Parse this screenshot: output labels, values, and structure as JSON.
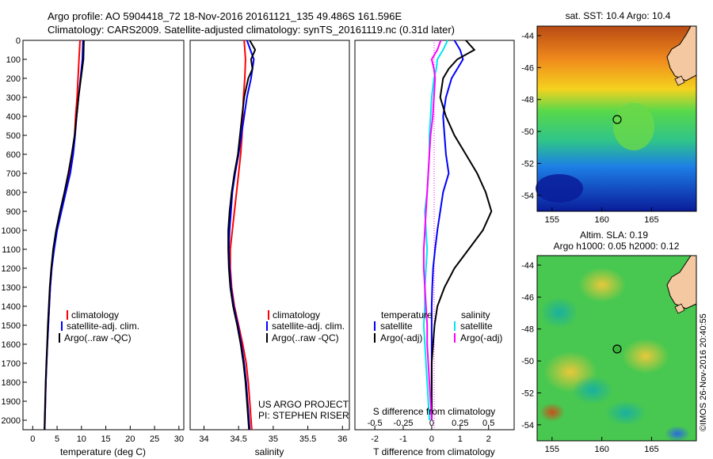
{
  "header": {
    "line1": "Argo profile: AO 5904418_72 18-Nov-2016 20161121_135 49.486S 161.596E",
    "line2": "Climatology: CARS2009. Satellite-adjusted climatology: synTS_20161119.nc (0.31d later)"
  },
  "colors": {
    "climatology": "#ff0000",
    "satellite": "#0000ff",
    "argo": "#000000",
    "sal_satellite": "#00e5ee",
    "sal_argo": "#ff00ff"
  },
  "chart_data": [
    {
      "type": "line",
      "name": "temperature-panel",
      "xlabel": "temperature (deg C)",
      "ylabel": "",
      "xlim": [
        -2,
        31
      ],
      "ylim": [
        2050,
        0
      ],
      "xticks": [
        "0",
        "5",
        "10",
        "15",
        "20",
        "25",
        "30"
      ],
      "yticks": [
        "0",
        "100",
        "200",
        "300",
        "400",
        "500",
        "600",
        "700",
        "800",
        "900",
        "1000",
        "1100",
        "1200",
        "1300",
        "1400",
        "1500",
        "1600",
        "1700",
        "1800",
        "1900",
        "2000"
      ],
      "legend": [
        "climatology",
        "satellite-adj. clim.",
        "Argo(..raw -QC)"
      ],
      "series": [
        {
          "name": "climatology",
          "depth": [
            0,
            100,
            200,
            300,
            400,
            500,
            600,
            700,
            800,
            900,
            1000,
            1100,
            1200,
            1300,
            1400,
            1500,
            1600,
            1700,
            1800,
            1900,
            2000,
            2050
          ],
          "values": [
            9.7,
            9.5,
            9.3,
            9.1,
            8.8,
            8.6,
            8.2,
            7.5,
            6.6,
            5.7,
            4.9,
            4.3,
            3.9,
            3.6,
            3.4,
            3.2,
            3.0,
            2.85,
            2.7,
            2.6,
            2.5,
            2.45
          ]
        },
        {
          "name": "satellite-adj. clim.",
          "depth": [
            0,
            100,
            200,
            300,
            400,
            500,
            600,
            700,
            800,
            900,
            1000,
            1100,
            1200,
            1300,
            1400,
            1500,
            1600,
            1700,
            1800,
            1900,
            2000,
            2050
          ],
          "values": [
            10.3,
            10.2,
            9.8,
            9.4,
            9.0,
            8.7,
            8.3,
            7.7,
            6.8,
            5.9,
            5.0,
            4.4,
            3.9,
            3.6,
            3.4,
            3.2,
            3.0,
            2.85,
            2.7,
            2.6,
            2.5,
            2.45
          ]
        },
        {
          "name": "Argo(..raw -QC)",
          "depth": [
            0,
            100,
            200,
            300,
            400,
            500,
            600,
            700,
            800,
            900,
            1000,
            1100,
            1200,
            1300,
            1400,
            1500,
            1600,
            1700,
            1800,
            1900,
            2000,
            2050
          ],
          "values": [
            10.5,
            10.4,
            9.9,
            9.4,
            9.0,
            8.6,
            8.0,
            7.3,
            6.5,
            5.6,
            4.8,
            4.2,
            3.8,
            3.5,
            3.3,
            3.1,
            2.95,
            2.8,
            2.65,
            2.55,
            2.45,
            2.4
          ]
        }
      ]
    },
    {
      "type": "line",
      "name": "salinity-panel",
      "xlabel": "salinity",
      "ylabel": "",
      "xlim": [
        33.8,
        36.1
      ],
      "ylim": [
        2050,
        0
      ],
      "xticks": [
        "34",
        "34.5",
        "35",
        "35.5",
        "36"
      ],
      "legend": [
        "climatology",
        "satellite-adj. clim.",
        "Argo(..raw -QC)"
      ],
      "series": [
        {
          "name": "climatology",
          "depth": [
            0,
            100,
            200,
            300,
            400,
            500,
            600,
            700,
            800,
            900,
            1000,
            1100,
            1200,
            1300,
            1400,
            1500,
            1600,
            1700,
            1800,
            1900,
            2000,
            2050
          ],
          "values": [
            34.58,
            34.6,
            34.59,
            34.57,
            34.56,
            34.55,
            34.53,
            34.5,
            34.47,
            34.44,
            34.41,
            34.38,
            34.38,
            34.4,
            34.44,
            34.5,
            34.56,
            34.61,
            34.64,
            34.66,
            34.68,
            34.69
          ]
        },
        {
          "name": "satellite-adj. clim.",
          "depth": [
            0,
            100,
            200,
            300,
            400,
            500,
            600,
            700,
            800,
            900,
            1000,
            1100,
            1200,
            1300,
            1400,
            1500,
            1600,
            1700,
            1800,
            1900,
            2000,
            2050
          ],
          "values": [
            34.62,
            34.72,
            34.68,
            34.62,
            34.58,
            34.54,
            34.5,
            34.45,
            34.41,
            34.39,
            34.37,
            34.36,
            34.37,
            34.39,
            34.43,
            34.49,
            34.54,
            34.58,
            34.61,
            34.63,
            34.65,
            34.66
          ]
        },
        {
          "name": "Argo(..raw -QC)",
          "depth": [
            0,
            50,
            100,
            150,
            200,
            300,
            400,
            500,
            600,
            700,
            800,
            900,
            1000,
            1100,
            1200,
            1300,
            1400,
            1500,
            1600,
            1700,
            1800,
            1900,
            2000,
            2050
          ],
          "values": [
            34.66,
            34.74,
            34.68,
            34.7,
            34.64,
            34.58,
            34.55,
            34.52,
            34.49,
            34.44,
            34.4,
            34.37,
            34.35,
            34.35,
            34.36,
            34.38,
            34.42,
            34.48,
            34.53,
            34.57,
            34.6,
            34.62,
            34.64,
            34.65
          ]
        }
      ]
    },
    {
      "type": "line",
      "name": "difference-panel",
      "xlabel": "T difference from climatology",
      "xlabel_top": "S difference from climatology",
      "ylim": [
        2050,
        0
      ],
      "xlim": [
        -2.7,
        2.9
      ],
      "xticks": [
        "-2",
        "-1",
        "0",
        "1",
        "2"
      ],
      "xticks_top": [
        "-0.5",
        "-0.25",
        "0",
        "0.25",
        "0.5"
      ],
      "legend_titles": [
        "temperature",
        "salinity"
      ],
      "legend": [
        "satellite",
        "Argo(-adj)",
        "satellite",
        "Argo(-adj)"
      ],
      "series": [
        {
          "name": "temperature satellite",
          "depth": [
            0,
            50,
            100,
            150,
            200,
            300,
            400,
            500,
            600,
            700,
            800,
            900,
            1000,
            1100,
            1200,
            1300,
            1400,
            1500,
            1600,
            1700,
            1800,
            1900,
            2000
          ],
          "values": [
            0.8,
            1.0,
            1.1,
            0.9,
            0.7,
            0.5,
            0.4,
            0.45,
            0.5,
            0.6,
            0.4,
            0.3,
            0.2,
            0.12,
            0.05,
            0.02,
            0.0,
            0.0,
            0.0,
            0.0,
            0.0,
            0.0,
            0.0
          ]
        },
        {
          "name": "temperature Argo(-adj)",
          "depth": [
            0,
            50,
            100,
            150,
            200,
            300,
            400,
            500,
            600,
            700,
            800,
            900,
            1000,
            1100,
            1200,
            1300,
            1400,
            1500,
            1600,
            1700,
            1800,
            1900,
            2000
          ],
          "values": [
            1.2,
            1.5,
            0.9,
            0.6,
            0.4,
            0.3,
            0.5,
            0.8,
            1.2,
            1.6,
            1.9,
            2.1,
            1.8,
            1.3,
            0.8,
            0.45,
            0.2,
            0.1,
            0.05,
            0.0,
            0.0,
            0.0,
            0.0
          ]
        },
        {
          "name": "salinity satellite",
          "depth": [
            0,
            50,
            100,
            150,
            200,
            300,
            400,
            500,
            600,
            700,
            800,
            900,
            1000,
            1100,
            1200,
            1300,
            1400,
            1500,
            1600,
            1700,
            1800,
            1900,
            2000
          ],
          "values": [
            0.14,
            0.1,
            0.05,
            0.04,
            0.02,
            0.0,
            -0.01,
            -0.02,
            -0.02,
            -0.03,
            -0.04,
            -0.06,
            -0.05,
            -0.04,
            -0.05,
            -0.06,
            -0.06,
            -0.07,
            -0.06,
            -0.05,
            -0.04,
            -0.03,
            -0.02
          ]
        },
        {
          "name": "salinity Argo(-adj)",
          "depth": [
            0,
            50,
            100,
            150,
            200,
            300,
            400,
            500,
            600,
            700,
            800,
            900,
            1000,
            1100,
            1200,
            1300,
            1400,
            1500,
            1600,
            1700,
            1800,
            1900,
            2000
          ],
          "values": [
            0.08,
            0.05,
            0.0,
            0.02,
            0.03,
            0.02,
            0.01,
            -0.01,
            -0.02,
            -0.03,
            -0.04,
            -0.05,
            -0.06,
            -0.07,
            -0.07,
            -0.06,
            -0.05,
            -0.04,
            -0.04,
            -0.03,
            -0.02,
            -0.01,
            0.0
          ]
        }
      ]
    }
  ],
  "notes": {
    "project": "US ARGO PROJECT",
    "pi": "PI: STEPHEN RISER"
  },
  "maps": {
    "sst": {
      "title": "sat. SST: 10.4 Argo: 10.4",
      "lat_ticks": [
        "-44",
        "-46",
        "-48",
        "-50",
        "-52",
        "-54"
      ],
      "lon_ticks": [
        "155",
        "160",
        "165"
      ]
    },
    "sla": {
      "title1": "Altim. SLA: 0.19",
      "title2": "Argo h1000: 0.05 h2000: 0.12",
      "lat_ticks": [
        "-44",
        "-46",
        "-48",
        "-50",
        "-52",
        "-54"
      ],
      "lon_ticks": [
        "155",
        "160",
        "165"
      ]
    },
    "credit": "©IMOS 26-Nov-2016 20:40:55"
  }
}
